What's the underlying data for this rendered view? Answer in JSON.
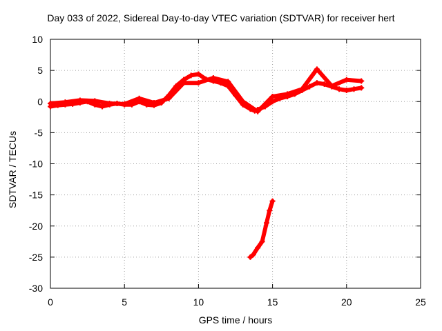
{
  "chart_data": {
    "type": "scatter",
    "title": "Day 033 of 2022, Sidereal Day-to-day VTEC variation (SDTVAR) for receiver hert",
    "xlabel": "GPS time / hours",
    "ylabel": "SDTVAR / TECUs",
    "xlim": [
      0,
      25
    ],
    "ylim": [
      -30,
      10
    ],
    "xticks": [
      0,
      5,
      10,
      15,
      20,
      25
    ],
    "yticks": [
      -30,
      -25,
      -20,
      -15,
      -10,
      -5,
      0,
      5,
      10
    ],
    "grid": true,
    "series": [
      {
        "color": "#ff0000",
        "x": [
          0.0,
          0.5,
          1.0,
          1.5,
          2.0,
          2.5,
          3.0,
          3.5,
          4.0,
          4.5,
          5.0,
          5.5,
          6.0,
          6.5,
          7.0,
          7.5,
          8.0,
          8.5,
          9.0,
          9.5,
          10.0,
          10.5,
          11.0,
          11.5,
          12.0,
          12.5,
          13.0,
          13.5,
          13.8,
          14.0,
          14.5,
          15.0,
          15.5,
          16.0,
          16.5,
          17.0,
          17.5,
          18.0,
          18.5,
          19.0,
          19.5,
          20.0,
          20.5,
          21.0
        ],
        "y": [
          -0.8,
          -0.6,
          -0.5,
          -0.4,
          -0.2,
          0.0,
          -0.5,
          -0.8,
          -0.5,
          -0.3,
          -0.5,
          -0.5,
          0.0,
          -0.5,
          -0.6,
          -0.2,
          1.0,
          2.5,
          3.5,
          4.2,
          4.4,
          3.6,
          3.3,
          3.0,
          2.5,
          1.0,
          -0.5,
          -1.2,
          -1.5,
          -1.3,
          -0.8,
          0.0,
          0.5,
          0.8,
          1.2,
          1.8,
          2.4,
          3.0,
          2.8,
          2.4,
          2.0,
          1.8,
          2.0,
          2.2
        ]
      },
      {
        "color": "#ff0000",
        "x": [
          0.0,
          1.0,
          2.0,
          3.0,
          4.0,
          5.0,
          6.0,
          7.0,
          8.0,
          9.0,
          10.0,
          11.0,
          12.0,
          13.0,
          14.0,
          15.0,
          16.0,
          17.0,
          18.0,
          19.0,
          20.0,
          21.0
        ],
        "y": [
          -0.3,
          -0.1,
          0.2,
          0.1,
          -0.3,
          -0.4,
          0.5,
          -0.2,
          0.5,
          3.0,
          3.0,
          3.8,
          3.2,
          0.0,
          -1.6,
          0.8,
          1.2,
          2.0,
          5.2,
          2.5,
          3.5,
          3.3
        ]
      },
      {
        "color": "#ff0000",
        "x": [
          13.5,
          13.7,
          14.0,
          14.3,
          14.6,
          14.8,
          15.0
        ],
        "y": [
          -25.0,
          -24.6,
          -23.5,
          -22.5,
          -19.5,
          -17.5,
          -16.0
        ]
      }
    ]
  }
}
